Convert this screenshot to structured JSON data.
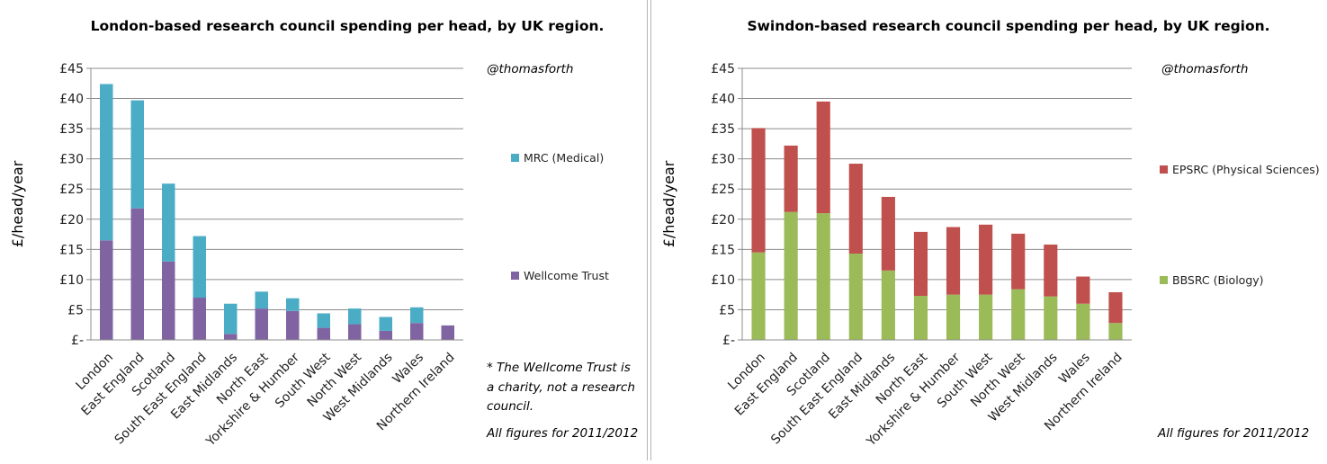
{
  "chart_data": [
    {
      "type": "bar",
      "stacked": true,
      "title": "London-based research council spending per head, by UK region.",
      "ylabel": "£/head/year",
      "xlabel": "",
      "ylim": [
        0,
        45
      ],
      "yticks": [
        "£-",
        "£5",
        "£10",
        "£15",
        "£20",
        "£25",
        "£30",
        "£35",
        "£40",
        "£45"
      ],
      "grid": true,
      "legend_position": "right",
      "categories": [
        "London",
        "East England",
        "Scotland",
        "South East England",
        "East Midlands",
        "North East",
        "Yorkshire & Humber",
        "South West",
        "North West",
        "West Midlands",
        "Wales",
        "Northern Ireland"
      ],
      "series": [
        {
          "name": "Wellcome Trust",
          "color": "#8064a2",
          "values": [
            16.5,
            21.8,
            13.0,
            7.0,
            1.0,
            5.2,
            4.8,
            2.0,
            2.6,
            1.5,
            2.8,
            2.4
          ]
        },
        {
          "name": "MRC (Medical)",
          "color": "#4bacc6",
          "values": [
            25.9,
            17.9,
            12.9,
            10.2,
            5.0,
            2.8,
            2.1,
            2.4,
            2.6,
            2.3,
            2.6,
            0
          ]
        }
      ],
      "annotations": {
        "credit": "@thomasforth",
        "footnote": [
          "* The Wellcome Trust is",
          "a charity, not a research",
          "council."
        ],
        "period": "All figures for 2011/2012"
      }
    },
    {
      "type": "bar",
      "stacked": true,
      "title": "Swindon-based research council spending per head, by UK region.",
      "ylabel": "£/head/year",
      "xlabel": "",
      "ylim": [
        0,
        45
      ],
      "yticks": [
        "£-",
        "£5",
        "£10",
        "£15",
        "£20",
        "£25",
        "£30",
        "£35",
        "£40",
        "£45"
      ],
      "grid": true,
      "legend_position": "right",
      "categories": [
        "London",
        "East England",
        "Scotland",
        "South East England",
        "East Midlands",
        "North East",
        "Yorkshire & Humber",
        "South West",
        "North West",
        "West Midlands",
        "Wales",
        "Northern Ireland"
      ],
      "series": [
        {
          "name": "BBSRC (Biology)",
          "color": "#9bbb59",
          "values": [
            14.5,
            21.2,
            21.0,
            14.3,
            11.5,
            7.3,
            7.5,
            7.5,
            8.4,
            7.2,
            6.0,
            2.8
          ]
        },
        {
          "name": "EPSRC (Physical Sciences)",
          "color": "#c0504d",
          "values": [
            20.6,
            11.0,
            18.5,
            14.9,
            12.2,
            10.6,
            11.2,
            11.6,
            9.2,
            8.6,
            4.5,
            5.1
          ]
        }
      ],
      "annotations": {
        "credit": "@thomasforth",
        "period": "All figures for 2011/2012"
      }
    }
  ]
}
